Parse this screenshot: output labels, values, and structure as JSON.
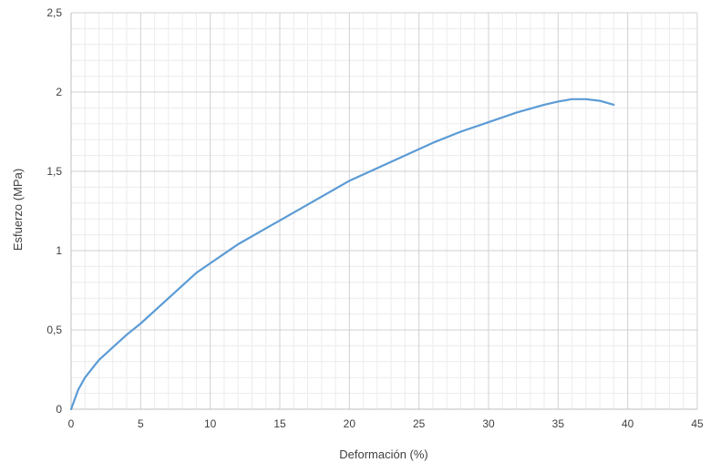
{
  "chart_data": {
    "type": "line",
    "title": "",
    "xlabel": "Deformación (%)",
    "ylabel": "Esfuerzo (MPa)",
    "xlim": [
      0,
      45
    ],
    "ylim": [
      0,
      2.5
    ],
    "x_ticks": [
      0,
      5,
      10,
      15,
      20,
      25,
      30,
      35,
      40,
      45
    ],
    "y_ticks": [
      0,
      0.5,
      1,
      1.5,
      2,
      2.5
    ],
    "x_tick_labels": [
      "0",
      "5",
      "10",
      "15",
      "20",
      "25",
      "30",
      "35",
      "40",
      "45"
    ],
    "y_tick_labels": [
      "0",
      "0,5",
      "1",
      "1,5",
      "2",
      "2,5"
    ],
    "grid": true,
    "minor_grid": true,
    "legend": "none",
    "series_color": "#5b9bd5",
    "series": [
      {
        "x": [
          0,
          0.5,
          1,
          2,
          3,
          4,
          5,
          6,
          7,
          8,
          9,
          10,
          12,
          14,
          15,
          16,
          18,
          20,
          22,
          24,
          25,
          26,
          28,
          30,
          32,
          34,
          35,
          36,
          37,
          38,
          39
        ],
        "y": [
          0,
          0.12,
          0.2,
          0.31,
          0.39,
          0.47,
          0.54,
          0.62,
          0.7,
          0.78,
          0.86,
          0.92,
          1.04,
          1.14,
          1.19,
          1.24,
          1.34,
          1.44,
          1.52,
          1.6,
          1.64,
          1.68,
          1.75,
          1.81,
          1.87,
          1.92,
          1.94,
          1.955,
          1.955,
          1.945,
          1.92
        ]
      }
    ]
  }
}
